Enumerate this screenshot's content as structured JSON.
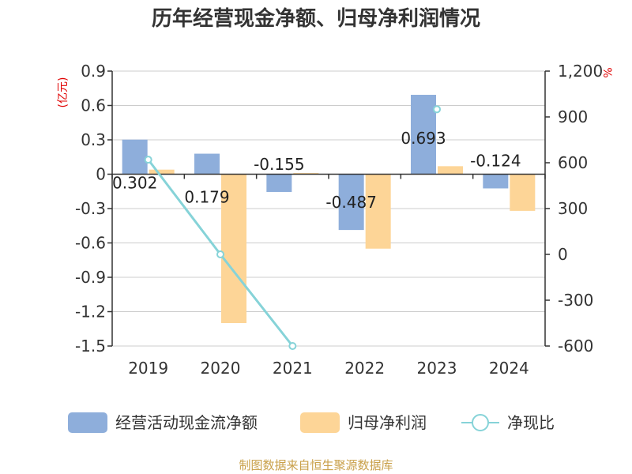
{
  "chart_data": {
    "type": "bar",
    "title": "历年经营现金净额、归母净利润情况",
    "categories": [
      "2019",
      "2020",
      "2021",
      "2022",
      "2023",
      "2024"
    ],
    "series": [
      {
        "name": "经营活动现金流净额",
        "type": "bar",
        "axis": "left",
        "color": "#8eaedb",
        "values": [
          0.302,
          0.179,
          -0.155,
          -0.487,
          0.693,
          -0.124
        ]
      },
      {
        "name": "归母净利润",
        "type": "bar",
        "axis": "left",
        "color": "#fdd597",
        "values": [
          0.04,
          -1.3,
          0.01,
          -0.65,
          0.07,
          -0.32
        ]
      },
      {
        "name": "净现比",
        "type": "line",
        "axis": "right",
        "color": "#86d3d8",
        "values": [
          620,
          0,
          -600,
          null,
          950,
          null
        ]
      }
    ],
    "data_labels": [
      "0.302",
      "0.179",
      "-0.155",
      "-0.487",
      "0.693",
      "-0.124"
    ],
    "y_left": {
      "unit": "(亿元)",
      "ylim": [
        -1.5,
        0.9
      ],
      "ticks": [
        0.9,
        0.6,
        0.3,
        0,
        -0.3,
        -0.6,
        -0.9,
        -1.2,
        -1.5
      ],
      "tick_labels": [
        "0.9",
        "0.6",
        "0.3",
        "0",
        "-0.3",
        "-0.6",
        "-0.9",
        "-1.2",
        "-1.5"
      ]
    },
    "y_right": {
      "unit": "%",
      "ylim": [
        -600,
        1200
      ],
      "ticks": [
        1200,
        900,
        600,
        300,
        0,
        -300,
        -600
      ],
      "tick_labels": [
        "1,200",
        "900",
        "600",
        "300",
        "0",
        "-300",
        "-600"
      ]
    },
    "grid": true,
    "legend_position": "bottom",
    "source": "制图数据来自恒生聚源数据库"
  }
}
